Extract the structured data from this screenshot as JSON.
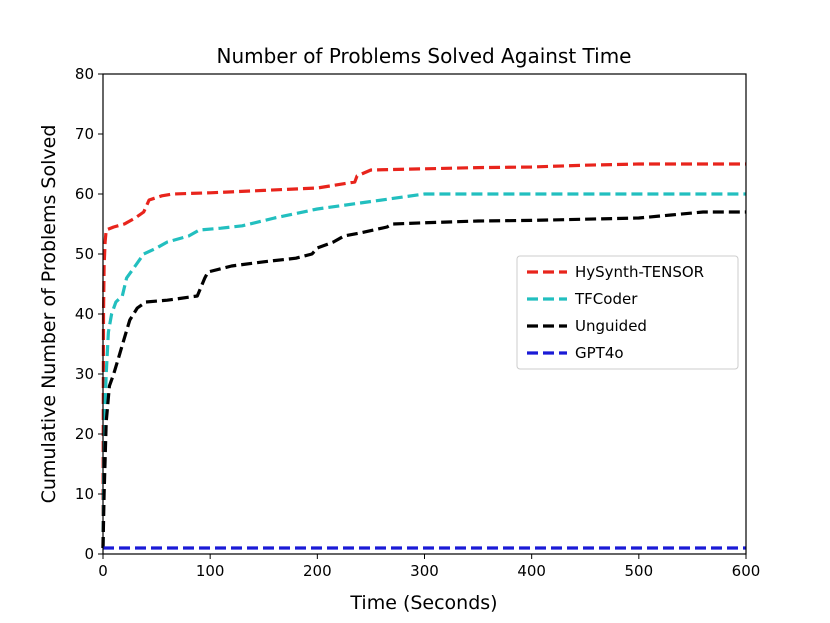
{
  "chart_data": {
    "type": "line",
    "title": "Number of Problems Solved Against Time",
    "xlabel": "Time (Seconds)",
    "ylabel": "Cumulative Number of Problems Solved",
    "xlim": [
      0,
      600
    ],
    "ylim": [
      0,
      80
    ],
    "xticks": [
      "0",
      "100",
      "200",
      "300",
      "400",
      "500",
      "600"
    ],
    "yticks": [
      "0",
      "10",
      "20",
      "30",
      "40",
      "50",
      "60",
      "70",
      "80"
    ],
    "grid": false,
    "legend_position": "center-right",
    "series": [
      {
        "name": "HySynth-TENSOR",
        "color": "#e8241c",
        "points": [
          [
            0,
            1
          ],
          [
            0.5,
            40
          ],
          [
            1,
            48
          ],
          [
            2,
            52
          ],
          [
            3,
            54
          ],
          [
            10,
            54.5
          ],
          [
            20,
            55
          ],
          [
            30,
            56
          ],
          [
            38,
            57
          ],
          [
            43,
            59
          ],
          [
            55,
            59.7
          ],
          [
            65,
            60
          ],
          [
            100,
            60.2
          ],
          [
            150,
            60.6
          ],
          [
            200,
            61
          ],
          [
            235,
            62
          ],
          [
            237,
            63
          ],
          [
            250,
            64
          ],
          [
            300,
            64.2
          ],
          [
            350,
            64.4
          ],
          [
            400,
            64.5
          ],
          [
            450,
            64.8
          ],
          [
            500,
            65
          ],
          [
            600,
            65
          ]
        ]
      },
      {
        "name": "TFCoder",
        "color": "#22bfbf",
        "points": [
          [
            0,
            1
          ],
          [
            1,
            20
          ],
          [
            3,
            30
          ],
          [
            5,
            37
          ],
          [
            8,
            40
          ],
          [
            12,
            42
          ],
          [
            18,
            43
          ],
          [
            22,
            46
          ],
          [
            30,
            48
          ],
          [
            38,
            50
          ],
          [
            50,
            51
          ],
          [
            60,
            52
          ],
          [
            80,
            53
          ],
          [
            90,
            54
          ],
          [
            110,
            54.3
          ],
          [
            130,
            54.7
          ],
          [
            160,
            56
          ],
          [
            200,
            57.5
          ],
          [
            240,
            58.5
          ],
          [
            280,
            59.5
          ],
          [
            300,
            60
          ],
          [
            310,
            60
          ],
          [
            400,
            60
          ],
          [
            500,
            60
          ],
          [
            600,
            60
          ]
        ]
      },
      {
        "name": "Unguided",
        "color": "#000000",
        "points": [
          [
            0,
            1
          ],
          [
            1,
            10
          ],
          [
            3,
            22
          ],
          [
            6,
            28
          ],
          [
            10,
            30
          ],
          [
            15,
            33
          ],
          [
            20,
            36
          ],
          [
            25,
            39
          ],
          [
            32,
            41
          ],
          [
            40,
            42
          ],
          [
            60,
            42.3
          ],
          [
            88,
            43
          ],
          [
            95,
            46
          ],
          [
            98,
            47
          ],
          [
            120,
            48
          ],
          [
            150,
            48.7
          ],
          [
            180,
            49.3
          ],
          [
            195,
            50
          ],
          [
            200,
            51
          ],
          [
            215,
            52
          ],
          [
            225,
            53
          ],
          [
            240,
            53.5
          ],
          [
            265,
            54.5
          ],
          [
            270,
            55
          ],
          [
            300,
            55.2
          ],
          [
            350,
            55.5
          ],
          [
            400,
            55.6
          ],
          [
            450,
            55.8
          ],
          [
            500,
            56
          ],
          [
            530,
            56.5
          ],
          [
            560,
            57
          ],
          [
            600,
            57
          ]
        ]
      },
      {
        "name": "GPT4o",
        "color": "#1a1ad6",
        "points": [
          [
            0,
            1
          ],
          [
            600,
            1
          ]
        ]
      }
    ]
  }
}
